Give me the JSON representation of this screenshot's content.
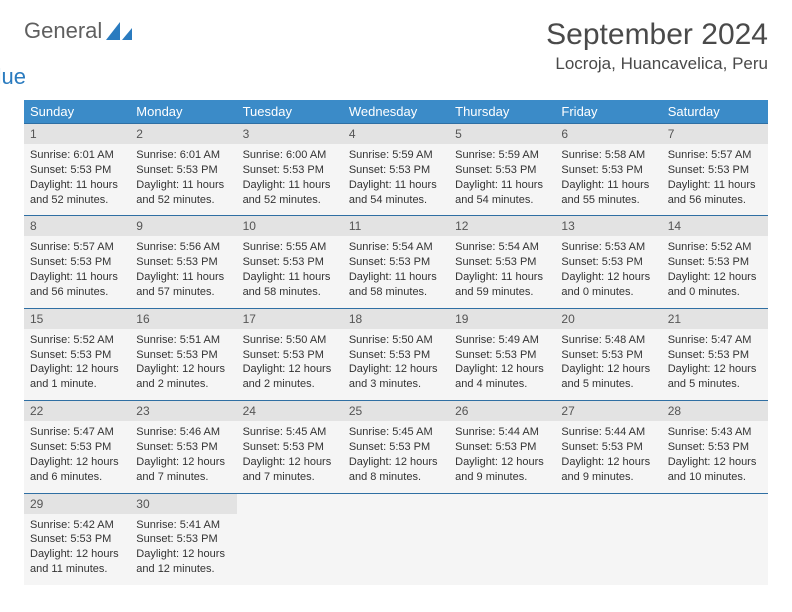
{
  "logo": {
    "text1": "General",
    "text2": "Blue",
    "shape_color": "#2a7bbf"
  },
  "title": "September 2024",
  "location": "Locroja, Huancavelica, Peru",
  "colors": {
    "header_bg": "#3b8bc8",
    "header_text": "#ffffff",
    "daynum_bg": "#e3e3e3",
    "body_bg": "#f5f5f5",
    "row_border": "#2f6fa3"
  },
  "weekdays": [
    "Sunday",
    "Monday",
    "Tuesday",
    "Wednesday",
    "Thursday",
    "Friday",
    "Saturday"
  ],
  "days": [
    {
      "n": 1,
      "sunrise": "6:01 AM",
      "sunset": "5:53 PM",
      "daylight": "11 hours and 52 minutes."
    },
    {
      "n": 2,
      "sunrise": "6:01 AM",
      "sunset": "5:53 PM",
      "daylight": "11 hours and 52 minutes."
    },
    {
      "n": 3,
      "sunrise": "6:00 AM",
      "sunset": "5:53 PM",
      "daylight": "11 hours and 52 minutes."
    },
    {
      "n": 4,
      "sunrise": "5:59 AM",
      "sunset": "5:53 PM",
      "daylight": "11 hours and 54 minutes."
    },
    {
      "n": 5,
      "sunrise": "5:59 AM",
      "sunset": "5:53 PM",
      "daylight": "11 hours and 54 minutes."
    },
    {
      "n": 6,
      "sunrise": "5:58 AM",
      "sunset": "5:53 PM",
      "daylight": "11 hours and 55 minutes."
    },
    {
      "n": 7,
      "sunrise": "5:57 AM",
      "sunset": "5:53 PM",
      "daylight": "11 hours and 56 minutes."
    },
    {
      "n": 8,
      "sunrise": "5:57 AM",
      "sunset": "5:53 PM",
      "daylight": "11 hours and 56 minutes."
    },
    {
      "n": 9,
      "sunrise": "5:56 AM",
      "sunset": "5:53 PM",
      "daylight": "11 hours and 57 minutes."
    },
    {
      "n": 10,
      "sunrise": "5:55 AM",
      "sunset": "5:53 PM",
      "daylight": "11 hours and 58 minutes."
    },
    {
      "n": 11,
      "sunrise": "5:54 AM",
      "sunset": "5:53 PM",
      "daylight": "11 hours and 58 minutes."
    },
    {
      "n": 12,
      "sunrise": "5:54 AM",
      "sunset": "5:53 PM",
      "daylight": "11 hours and 59 minutes."
    },
    {
      "n": 13,
      "sunrise": "5:53 AM",
      "sunset": "5:53 PM",
      "daylight": "12 hours and 0 minutes."
    },
    {
      "n": 14,
      "sunrise": "5:52 AM",
      "sunset": "5:53 PM",
      "daylight": "12 hours and 0 minutes."
    },
    {
      "n": 15,
      "sunrise": "5:52 AM",
      "sunset": "5:53 PM",
      "daylight": "12 hours and 1 minute."
    },
    {
      "n": 16,
      "sunrise": "5:51 AM",
      "sunset": "5:53 PM",
      "daylight": "12 hours and 2 minutes."
    },
    {
      "n": 17,
      "sunrise": "5:50 AM",
      "sunset": "5:53 PM",
      "daylight": "12 hours and 2 minutes."
    },
    {
      "n": 18,
      "sunrise": "5:50 AM",
      "sunset": "5:53 PM",
      "daylight": "12 hours and 3 minutes."
    },
    {
      "n": 19,
      "sunrise": "5:49 AM",
      "sunset": "5:53 PM",
      "daylight": "12 hours and 4 minutes."
    },
    {
      "n": 20,
      "sunrise": "5:48 AM",
      "sunset": "5:53 PM",
      "daylight": "12 hours and 5 minutes."
    },
    {
      "n": 21,
      "sunrise": "5:47 AM",
      "sunset": "5:53 PM",
      "daylight": "12 hours and 5 minutes."
    },
    {
      "n": 22,
      "sunrise": "5:47 AM",
      "sunset": "5:53 PM",
      "daylight": "12 hours and 6 minutes."
    },
    {
      "n": 23,
      "sunrise": "5:46 AM",
      "sunset": "5:53 PM",
      "daylight": "12 hours and 7 minutes."
    },
    {
      "n": 24,
      "sunrise": "5:45 AM",
      "sunset": "5:53 PM",
      "daylight": "12 hours and 7 minutes."
    },
    {
      "n": 25,
      "sunrise": "5:45 AM",
      "sunset": "5:53 PM",
      "daylight": "12 hours and 8 minutes."
    },
    {
      "n": 26,
      "sunrise": "5:44 AM",
      "sunset": "5:53 PM",
      "daylight": "12 hours and 9 minutes."
    },
    {
      "n": 27,
      "sunrise": "5:44 AM",
      "sunset": "5:53 PM",
      "daylight": "12 hours and 9 minutes."
    },
    {
      "n": 28,
      "sunrise": "5:43 AM",
      "sunset": "5:53 PM",
      "daylight": "12 hours and 10 minutes."
    },
    {
      "n": 29,
      "sunrise": "5:42 AM",
      "sunset": "5:53 PM",
      "daylight": "12 hours and 11 minutes."
    },
    {
      "n": 30,
      "sunrise": "5:41 AM",
      "sunset": "5:53 PM",
      "daylight": "12 hours and 12 minutes."
    }
  ],
  "labels": {
    "sunrise": "Sunrise:",
    "sunset": "Sunset:",
    "daylight": "Daylight:"
  }
}
